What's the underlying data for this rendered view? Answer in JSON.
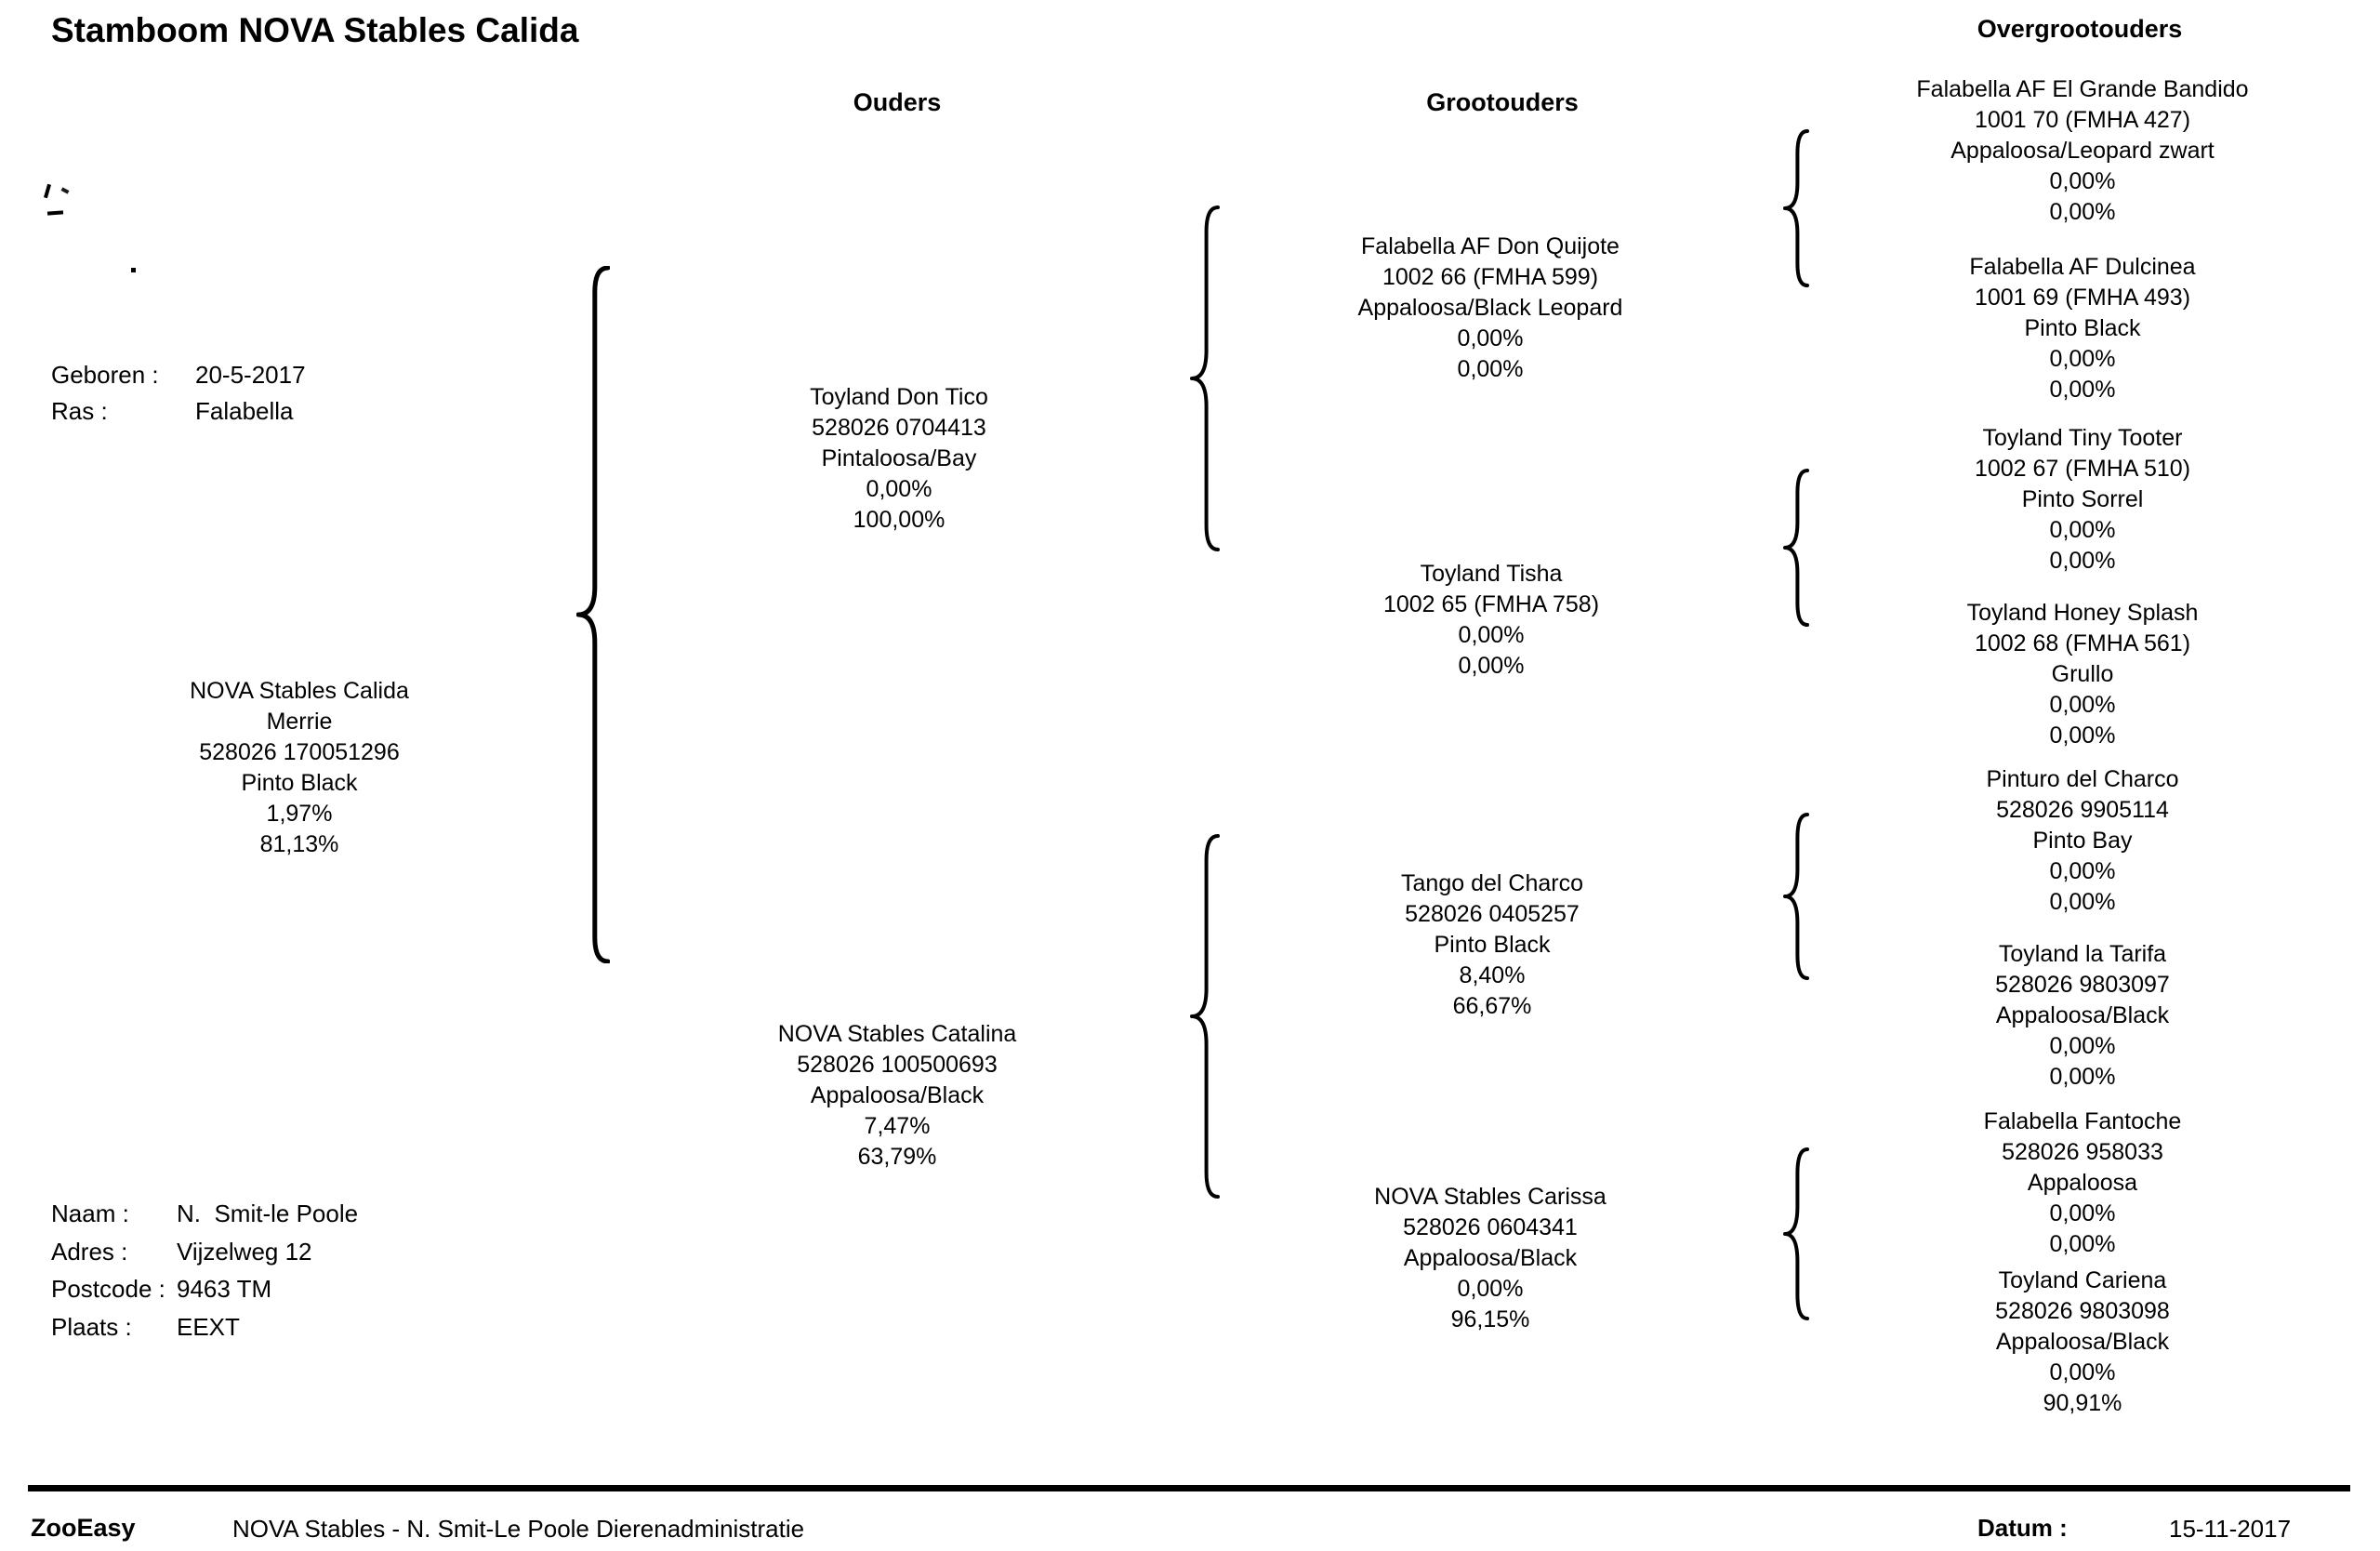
{
  "title": "Stamboom NOVA Stables Calida",
  "column_headers": {
    "parents": "Ouders",
    "grandparents": "Grootouders",
    "great_grandparents": "Overgrootouders"
  },
  "subject_details": [
    {
      "label": "Geboren :",
      "value": "20-5-2017"
    },
    {
      "label": "Ras :",
      "value": "Falabella"
    }
  ],
  "owner_details": [
    {
      "label": "Naam :",
      "value": "N.  Smit-le Poole"
    },
    {
      "label": "Adres :",
      "value": "Vijzelweg 12"
    },
    {
      "label": "Postcode :",
      "value": "9463 TM"
    },
    {
      "label": "Plaats :",
      "value": "EEXT"
    }
  ],
  "pedigree": {
    "subject": {
      "lines": [
        "NOVA Stables Calida",
        "Merrie",
        "528026 170051296",
        "Pinto Black",
        "1,97%",
        "81,13%"
      ]
    },
    "parents": [
      {
        "role": "sire",
        "lines": [
          "Toyland Don Tico",
          "528026 0704413",
          "Pintaloosa/Bay",
          "0,00%",
          "100,00%"
        ]
      },
      {
        "role": "dam",
        "lines": [
          "NOVA Stables Catalina",
          "528026 100500693",
          "Appaloosa/Black",
          "7,47%",
          "63,79%"
        ]
      }
    ],
    "grandparents": [
      {
        "lines": [
          "Falabella AF Don Quijote",
          "1002 66 (FMHA 599)",
          "Appaloosa/Black Leopard",
          "0,00%",
          "0,00%"
        ]
      },
      {
        "lines": [
          "Toyland Tisha",
          "1002 65 (FMHA 758)",
          "0,00%",
          "0,00%"
        ]
      },
      {
        "lines": [
          "Tango del Charco",
          "528026 0405257",
          "Pinto Black",
          "8,40%",
          "66,67%"
        ]
      },
      {
        "lines": [
          "NOVA Stables Carissa",
          "528026 0604341",
          "Appaloosa/Black",
          "0,00%",
          "96,15%"
        ]
      }
    ],
    "great_grandparents": [
      {
        "lines": [
          "Falabella AF El Grande Bandido",
          "1001 70 (FMHA 427)",
          "Appaloosa/Leopard zwart",
          "0,00%",
          "0,00%"
        ]
      },
      {
        "lines": [
          "Falabella AF Dulcinea",
          "1001 69 (FMHA 493)",
          "Pinto Black",
          "0,00%",
          "0,00%"
        ]
      },
      {
        "lines": [
          "Toyland Tiny Tooter",
          "1002 67 (FMHA 510)",
          "Pinto Sorrel",
          "0,00%",
          "0,00%"
        ]
      },
      {
        "lines": [
          "Toyland Honey Splash",
          "1002 68 (FMHA 561)",
          "Grullo",
          "0,00%",
          "0,00%"
        ]
      },
      {
        "lines": [
          "Pinturo del Charco",
          "528026 9905114",
          "Pinto Bay",
          "0,00%",
          "0,00%"
        ]
      },
      {
        "lines": [
          "Toyland la Tarifa",
          "528026 9803097",
          "Appaloosa/Black",
          "0,00%",
          "0,00%"
        ]
      },
      {
        "lines": [
          "Falabella Fantoche",
          "528026 958033",
          "Appaloosa",
          "0,00%",
          "0,00%"
        ]
      },
      {
        "lines": [
          "Toyland Cariena",
          "528026 9803098",
          "Appaloosa/Black",
          "0,00%",
          "90,91%"
        ]
      }
    ]
  },
  "footer": {
    "brand": "ZooEasy",
    "administration": "NOVA Stables - N. Smit-Le Poole Dierenadministratie",
    "date_label": "Datum :",
    "date_value": "15-11-2017"
  }
}
